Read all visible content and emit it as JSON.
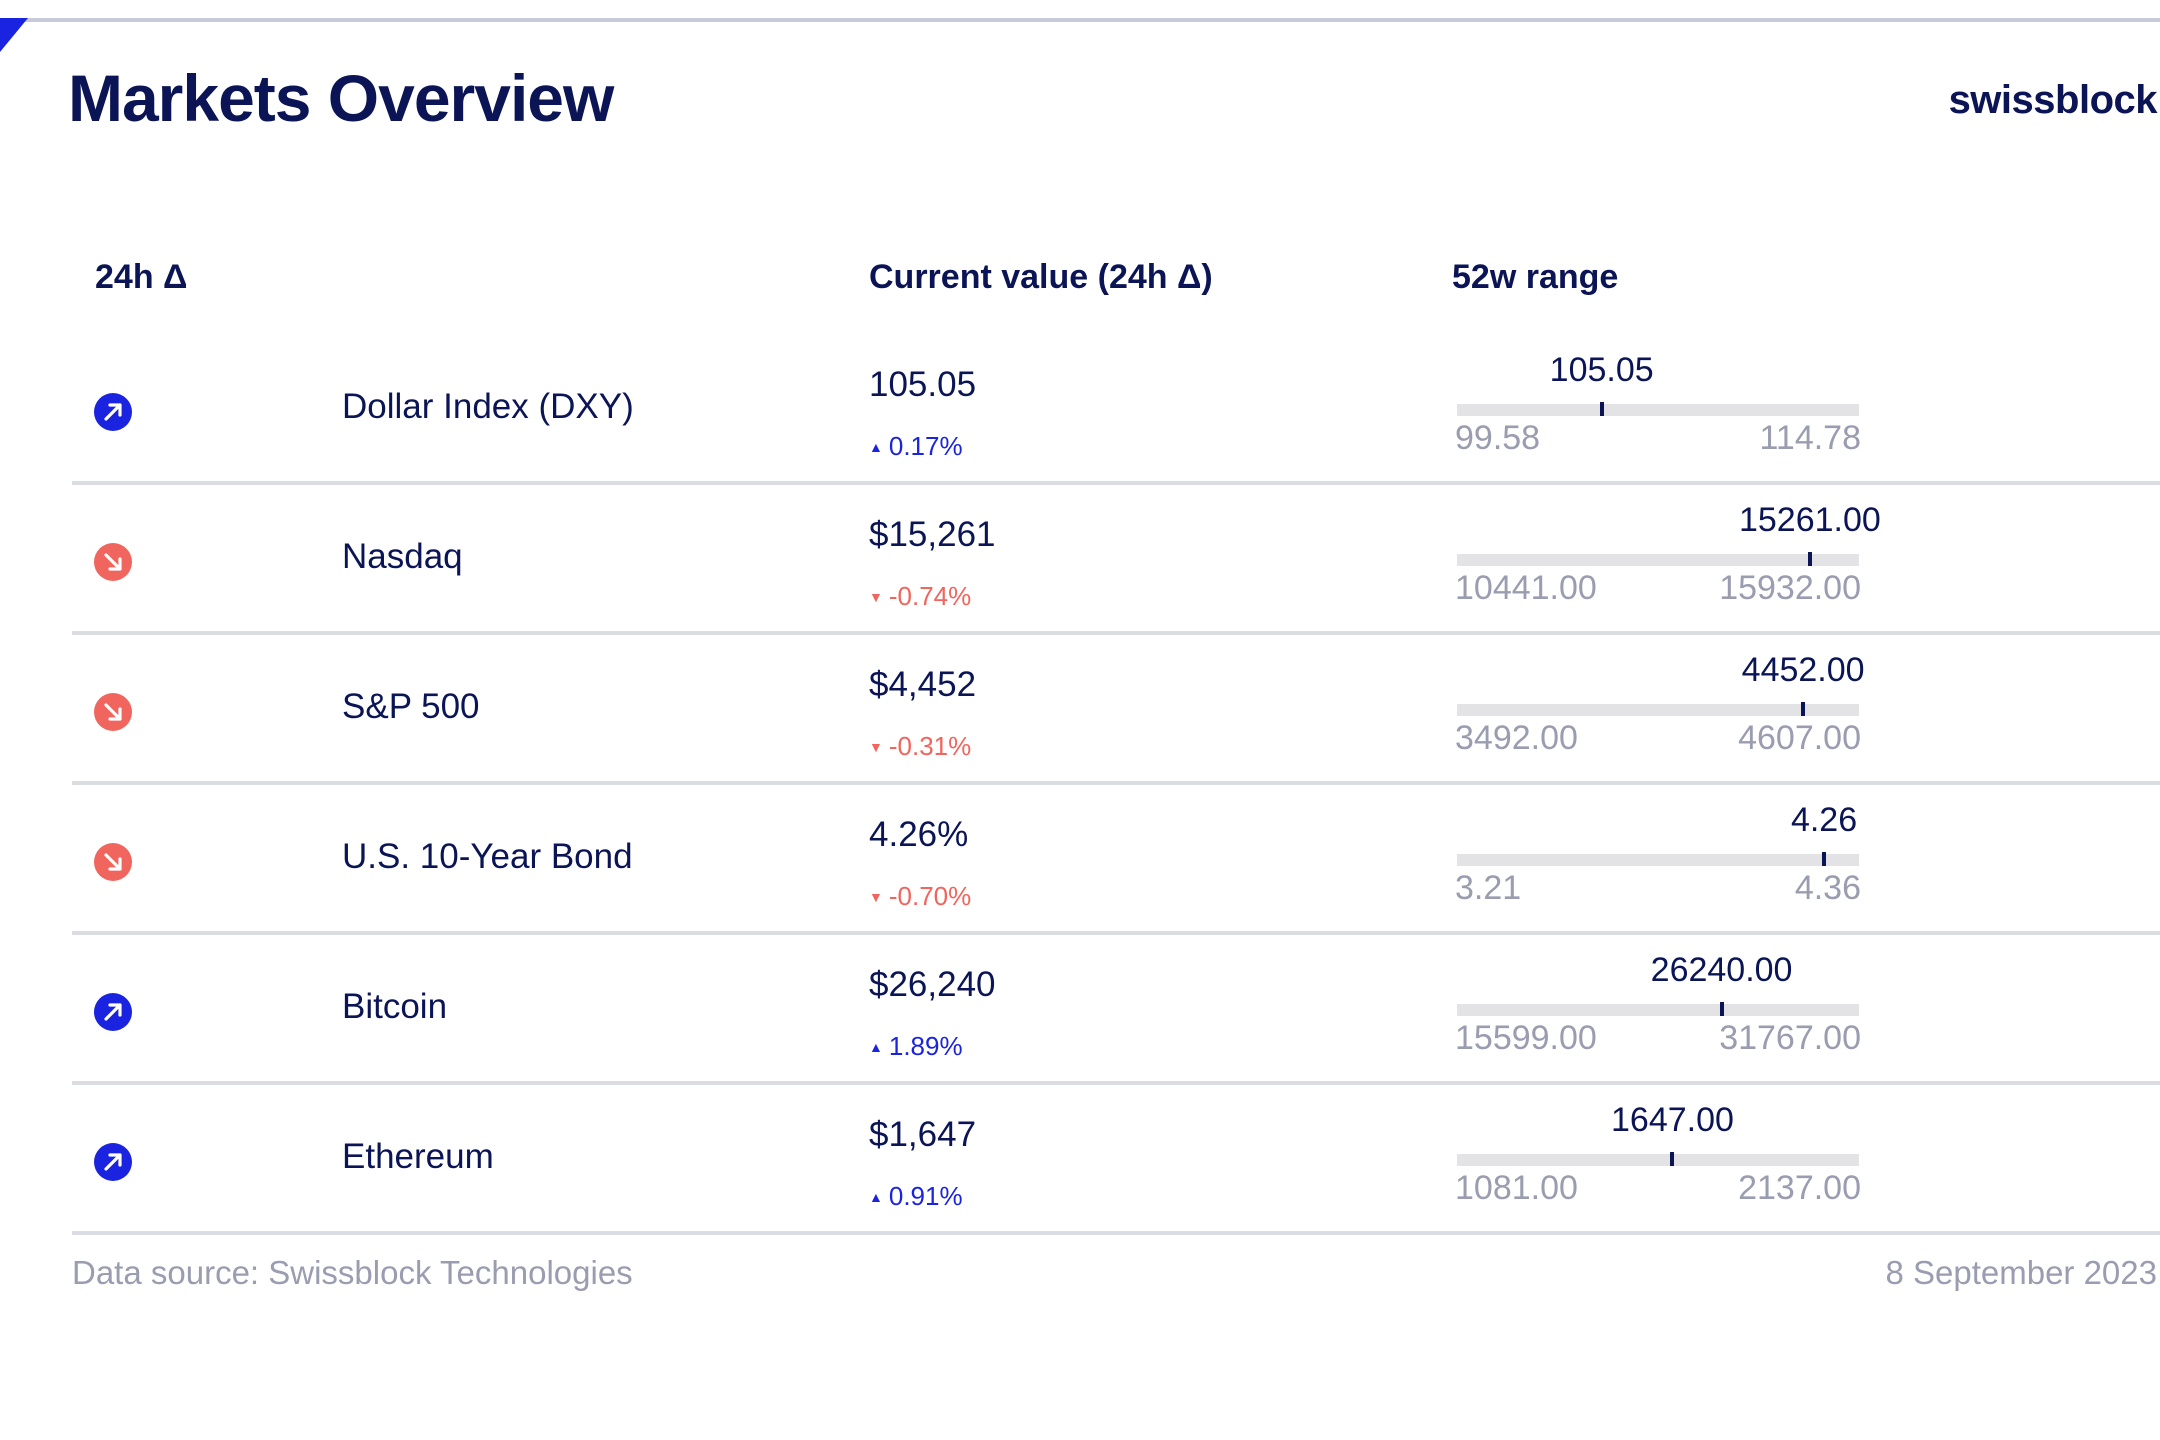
{
  "title": "Markets Overview",
  "brand": "swissblock",
  "colors": {
    "navy": "#0b1556",
    "up": "#1a24e0",
    "down": "#f0655d",
    "muted": "#9a9cb0",
    "bar": "#e3e3e5"
  },
  "columns": {
    "delta": "24h Δ",
    "current": "Current value (24h Δ)",
    "range": "52w range"
  },
  "chart_data": {
    "type": "table",
    "rows": [
      {
        "name": "Dollar Index (DXY)",
        "direction": "up",
        "icon": "arrow-up-right-icon",
        "value": "105.05",
        "change": "0.17%",
        "range_current": "105.05",
        "range_low": "99.58",
        "range_high": "114.78",
        "current_num": 105.05,
        "low_num": 99.58,
        "high_num": 114.78
      },
      {
        "name": "Nasdaq",
        "direction": "down",
        "icon": "arrow-down-right-icon",
        "value": "$15,261",
        "change": "-0.74%",
        "range_current": "15261.00",
        "range_low": "10441.00",
        "range_high": "15932.00",
        "current_num": 15261.0,
        "low_num": 10441.0,
        "high_num": 15932.0
      },
      {
        "name": "S&P 500",
        "direction": "down",
        "icon": "arrow-down-right-icon",
        "value": "$4,452",
        "change": "-0.31%",
        "range_current": "4452.00",
        "range_low": "3492.00",
        "range_high": "4607.00",
        "current_num": 4452.0,
        "low_num": 3492.0,
        "high_num": 4607.0
      },
      {
        "name": "U.S. 10-Year Bond",
        "direction": "down",
        "icon": "arrow-down-right-icon",
        "value": "4.26%",
        "change": "-0.70%",
        "range_current": "4.26",
        "range_low": "3.21",
        "range_high": "4.36",
        "current_num": 4.26,
        "low_num": 3.21,
        "high_num": 4.36
      },
      {
        "name": "Bitcoin",
        "direction": "up",
        "icon": "arrow-up-right-icon",
        "value": "$26,240",
        "change": "1.89%",
        "range_current": "26240.00",
        "range_low": "15599.00",
        "range_high": "31767.00",
        "current_num": 26240.0,
        "low_num": 15599.0,
        "high_num": 31767.0
      },
      {
        "name": "Ethereum",
        "direction": "up",
        "icon": "arrow-up-right-icon",
        "value": "$1,647",
        "change": "0.91%",
        "range_current": "1647.00",
        "range_low": "1081.00",
        "range_high": "2137.00",
        "current_num": 1647.0,
        "low_num": 1081.0,
        "high_num": 2137.0
      }
    ]
  },
  "footer": {
    "source": "Data source: Swissblock Technologies",
    "date": "8 September 2023"
  }
}
